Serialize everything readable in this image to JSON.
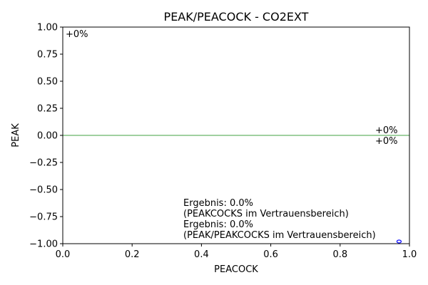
{
  "chart_data": {
    "type": "scatter",
    "title": "PEAK/PEACOCK - CO2EXT",
    "xlabel": "PEACOCK",
    "ylabel": "PEAK",
    "xlim": [
      0.0,
      1.0
    ],
    "ylim": [
      -1.0,
      1.0
    ],
    "x_ticks": [
      "0.0",
      "0.2",
      "0.4",
      "0.6",
      "0.8",
      "1.0"
    ],
    "y_ticks": [
      "1.00",
      "0.75",
      "0.50",
      "0.25",
      "0.00",
      "−0.25",
      "−0.50",
      "−0.75",
      "−1.00"
    ],
    "grid": false,
    "reference_line": {
      "y": 0.0,
      "color": "#008000"
    },
    "series": [
      {
        "points": [
          {
            "x": 0.97,
            "y": -0.98
          }
        ],
        "color": "#0000ff",
        "marker": "circle-open"
      }
    ],
    "annotations": {
      "top_left": {
        "text": "+0%",
        "color": "#ff0000"
      },
      "right_upper": {
        "text": "+0%",
        "color": "#008000"
      },
      "right_lower": {
        "text": "+0%",
        "color": "#008000"
      },
      "result_lines": [
        "Ergebnis: 0.0%",
        "(PEAKCOCKS im Vertrauensbereich)",
        "Ergebnis: 0.0%",
        "(PEAK/PEAKCOCKS im Vertrauensbereich)"
      ]
    }
  }
}
